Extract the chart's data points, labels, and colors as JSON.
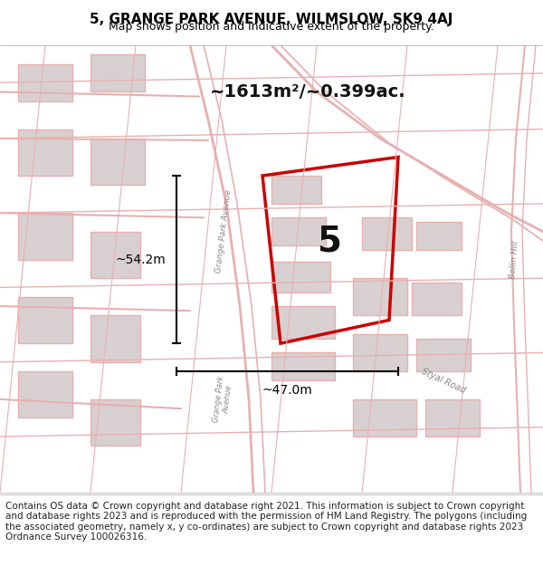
{
  "title": "5, GRANGE PARK AVENUE, WILMSLOW, SK9 4AJ",
  "subtitle": "Map shows position and indicative extent of the property.",
  "area_text": "~1613m²/~0.399ac.",
  "property_number": "5",
  "width_label": "~47.0m",
  "height_label": "~54.2m",
  "footer": "Contains OS data © Crown copyright and database right 2021. This information is subject to Crown copyright and database rights 2023 and is reproduced with the permission of HM Land Registry. The polygons (including the associated geometry, namely x, y co-ordinates) are subject to Crown copyright and database rights 2023 Ordnance Survey 100026316.",
  "bg_color": "#f5f0f0",
  "map_bg_color": "#f8f4f4",
  "road_color": "#e8b0b0",
  "building_color": "#d8d0d0",
  "property_outline_color": "#cc0000",
  "title_color": "#000000",
  "title_fontsize": 11,
  "subtitle_fontsize": 9,
  "footer_fontsize": 7.5,
  "map_xlim": [
    0,
    1
  ],
  "map_ylim": [
    0,
    1
  ]
}
